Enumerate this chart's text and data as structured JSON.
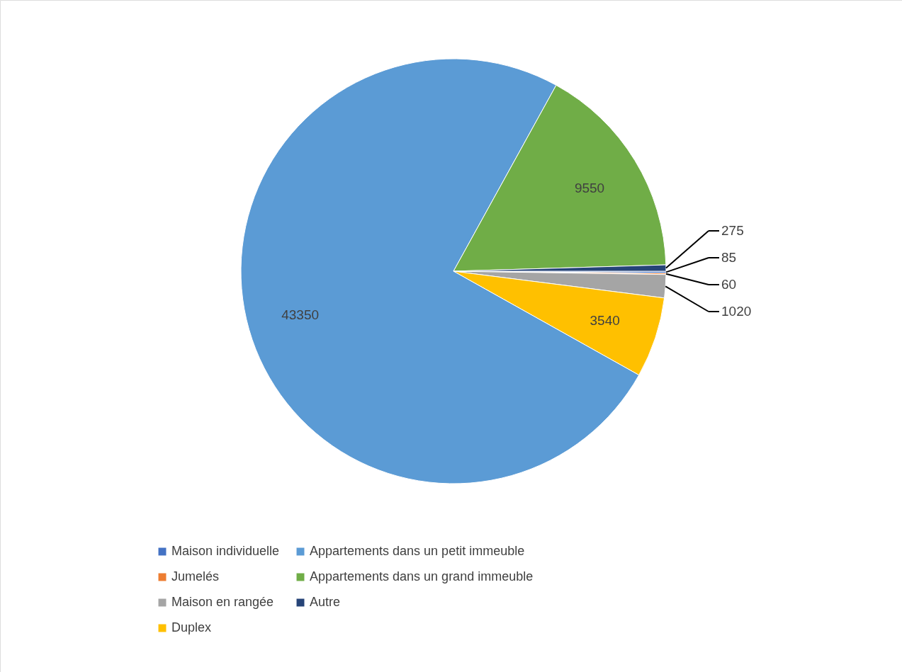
{
  "chart_data": {
    "type": "pie",
    "categories": [
      "Maison individuelle",
      "Jumelés",
      "Maison en rangée",
      "Duplex",
      "Appartements dans un petit immeuble",
      "Appartements dans un grand immeuble",
      "Autre"
    ],
    "values": [
      85,
      60,
      1020,
      3540,
      43350,
      9550,
      275
    ],
    "colors": [
      "#4472c4",
      "#ed7d31",
      "#a5a5a5",
      "#ffc000",
      "#5b9bd5",
      "#70ad47",
      "#264478"
    ],
    "data_labels": true,
    "legend": "bottom"
  }
}
